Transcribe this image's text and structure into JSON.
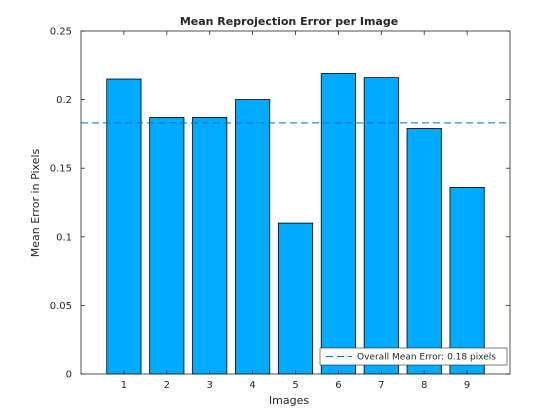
{
  "chart_data": {
    "type": "bar",
    "title": "Mean Reprojection Error per Image",
    "xlabel": "Images",
    "ylabel": "Mean Error in Pixels",
    "categories": [
      "1",
      "2",
      "3",
      "4",
      "5",
      "6",
      "7",
      "8",
      "9"
    ],
    "values": [
      0.215,
      0.187,
      0.187,
      0.2,
      0.11,
      0.219,
      0.216,
      0.179,
      0.136
    ],
    "ylim": [
      0,
      0.25
    ],
    "xlim": [
      0,
      10
    ],
    "yticks": [
      0,
      0.05,
      0.1,
      0.15,
      0.2,
      0.25
    ],
    "ytick_labels": [
      "0",
      "0.05",
      "0.1",
      "0.15",
      "0.2",
      "0.25"
    ],
    "reference_line": {
      "value": 0.183,
      "label": "Overall Mean Error: 0.18 pixels",
      "style": "dashed"
    },
    "legend_position": "bottom-right",
    "grid": false,
    "colors": {
      "bar_fill": "#00AAFF",
      "bar_edge": "#000000",
      "reference_line": "#0072BD",
      "axis": "#262626"
    }
  }
}
